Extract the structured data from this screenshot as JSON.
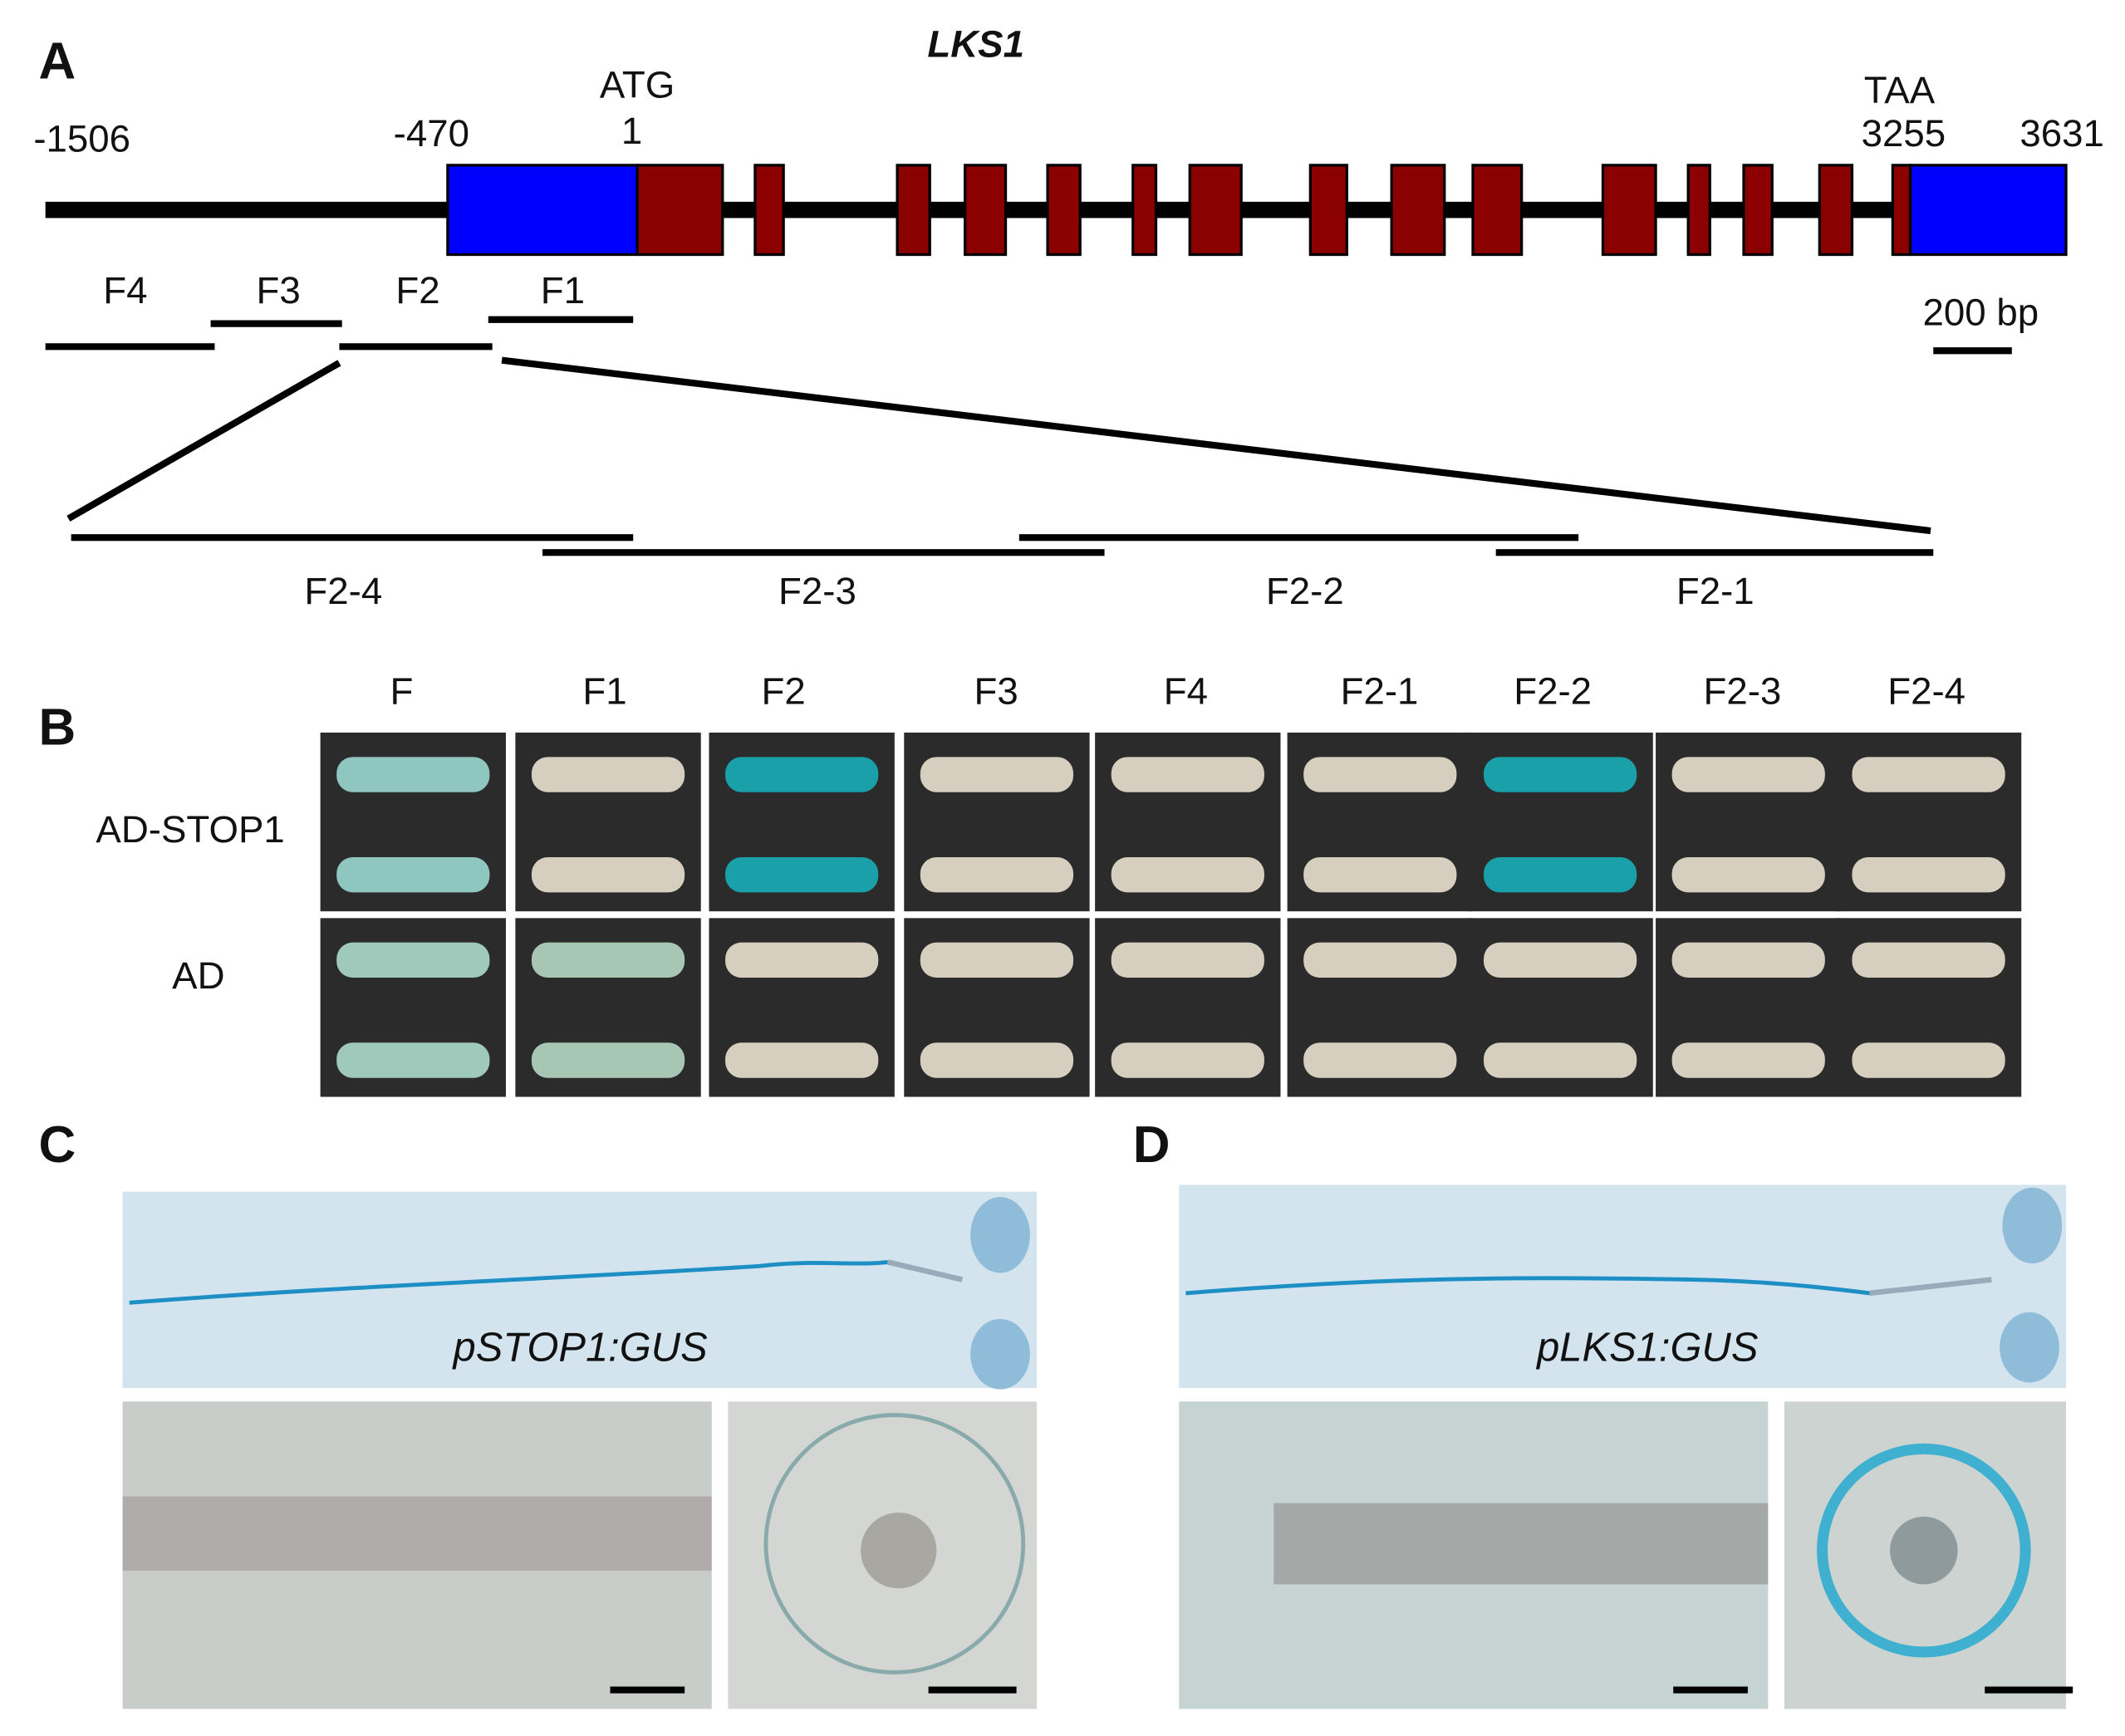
{
  "panel_labels": [
    "A",
    "B",
    "C",
    "D"
  ],
  "panel_a": {
    "gene_name": "LKS1",
    "positions": [
      "-1506",
      "-470",
      "ATG",
      "1",
      "TAA",
      "3255",
      "3631"
    ],
    "fragments": [
      "F4",
      "F3",
      "F2",
      "F1"
    ],
    "subfragments": [
      "F2-4",
      "F2-3",
      "F2-2",
      "F2-1"
    ],
    "scale_bar": "200 bp"
  },
  "panel_b": {
    "columns": [
      "F",
      "F1",
      "F2",
      "F3",
      "F4",
      "F2-1",
      "F2-2",
      "F2-3",
      "F2-4"
    ],
    "rows": [
      "AD-STOP1",
      "AD"
    ]
  },
  "panel_c": {
    "caption": "pSTOP1:GUS"
  },
  "panel_d": {
    "caption": "pLKS1:GUS"
  }
}
